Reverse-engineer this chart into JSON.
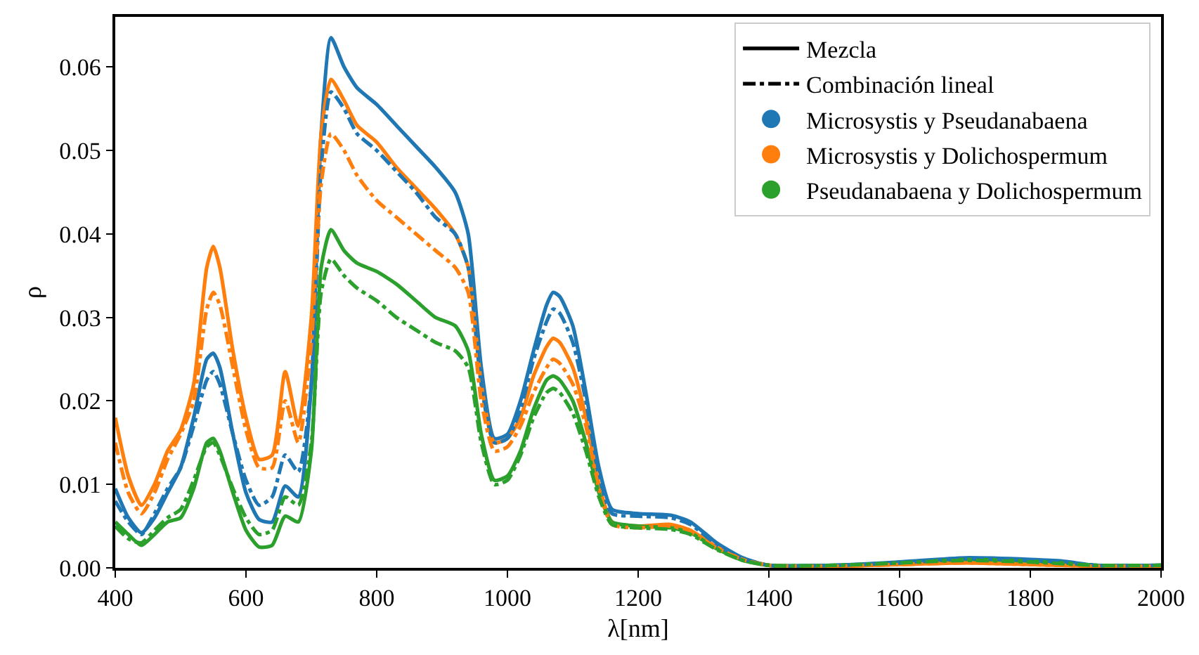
{
  "chart_data": {
    "type": "line",
    "xlabel": "λ[nm]",
    "ylabel": "ρ",
    "legend": "top right",
    "xlim": [
      400,
      2000
    ],
    "xticks": [
      400,
      600,
      800,
      1000,
      1200,
      1400,
      1600,
      1800,
      2000
    ],
    "ylim": [
      0,
      0.066
    ],
    "yticks": [
      {
        "value": 0,
        "label": "0.00"
      },
      {
        "value": 0.01,
        "label": "0.01"
      },
      {
        "value": 0.02,
        "label": "0.02"
      },
      {
        "value": 0.03,
        "label": "0.03"
      },
      {
        "value": 0.04,
        "label": "0.04"
      },
      {
        "value": 0.05,
        "label": "0.05"
      },
      {
        "value": 0.06,
        "label": "0.06"
      }
    ],
    "x": [
      400,
      420,
      440,
      460,
      480,
      500,
      520,
      540,
      550,
      560,
      580,
      600,
      620,
      640,
      660,
      680,
      700,
      715,
      730,
      750,
      770,
      800,
      830,
      860,
      890,
      920,
      940,
      960,
      980,
      1000,
      1020,
      1040,
      1060,
      1070,
      1080,
      1100,
      1120,
      1140,
      1160,
      1200,
      1250,
      1280,
      1320,
      1360,
      1400,
      1500,
      1600,
      1700,
      1800,
      1850,
      1900,
      2000
    ],
    "series": [
      {
        "name": "Mezcla",
        "color": "#000000",
        "line_style": "solid",
        "values": [
          null,
          null,
          null,
          null,
          null,
          null,
          null,
          null,
          null,
          null,
          null,
          null,
          null,
          null,
          null,
          null,
          null,
          null,
          null,
          null,
          null,
          null,
          null,
          null,
          null,
          null,
          null,
          null,
          null,
          null,
          null,
          null,
          null,
          null,
          null,
          null,
          null,
          null,
          null,
          null,
          null,
          null,
          null,
          null,
          null,
          null,
          null,
          null,
          null,
          null,
          null,
          null
        ]
      },
      {
        "name": "Combinación lineal",
        "color": "#000000",
        "line_style": "dashdot",
        "values": [
          null,
          null,
          null,
          null,
          null,
          null,
          null,
          null,
          null,
          null,
          null,
          null,
          null,
          null,
          null,
          null,
          null,
          null,
          null,
          null,
          null,
          null,
          null,
          null,
          null,
          null,
          null,
          null,
          null,
          null,
          null,
          null,
          null,
          null,
          null,
          null,
          null,
          null,
          null,
          null,
          null,
          null,
          null,
          null,
          null,
          null,
          null,
          null,
          null,
          null,
          null,
          null
        ]
      },
      {
        "name": "Microsystis y Pseudanabaena",
        "color": "#1f77b4",
        "line_style": "solid",
        "values": [
          0.0095,
          0.006,
          0.0042,
          0.006,
          0.009,
          0.012,
          0.018,
          0.025,
          0.0257,
          0.024,
          0.016,
          0.009,
          0.0058,
          0.0055,
          0.0098,
          0.0085,
          0.022,
          0.052,
          0.0635,
          0.06,
          0.0575,
          0.0555,
          0.053,
          0.0505,
          0.048,
          0.045,
          0.04,
          0.024,
          0.0155,
          0.016,
          0.02,
          0.026,
          0.0315,
          0.033,
          0.0325,
          0.029,
          0.021,
          0.012,
          0.007,
          0.0065,
          0.0063,
          0.0055,
          0.003,
          0.0012,
          0.0003,
          0.0003,
          0.0007,
          0.0012,
          0.001,
          0.0008,
          0.0003,
          0.0003
        ]
      },
      {
        "name": "Microsystis y Dolichospermum",
        "color": "#ff7f0e",
        "line_style": "solid",
        "values": [
          0.018,
          0.011,
          0.0075,
          0.01,
          0.014,
          0.0165,
          0.022,
          0.036,
          0.0385,
          0.036,
          0.026,
          0.018,
          0.013,
          0.0135,
          0.0235,
          0.017,
          0.03,
          0.052,
          0.0585,
          0.056,
          0.053,
          0.051,
          0.048,
          0.0455,
          0.043,
          0.04,
          0.036,
          0.022,
          0.015,
          0.0155,
          0.018,
          0.023,
          0.0265,
          0.0275,
          0.027,
          0.024,
          0.018,
          0.01,
          0.0055,
          0.005,
          0.0052,
          0.0045,
          0.0025,
          0.001,
          0.0003,
          0.0002,
          0.0004,
          0.0006,
          0.0004,
          0.0003,
          0.0002,
          0.0002
        ]
      },
      {
        "name": "Pseudanabaena y Dolichospermum",
        "color": "#2ca02c",
        "line_style": "solid",
        "values": [
          0.0055,
          0.004,
          0.0027,
          0.004,
          0.0055,
          0.006,
          0.0095,
          0.015,
          0.0155,
          0.014,
          0.009,
          0.0045,
          0.0025,
          0.0027,
          0.0062,
          0.0055,
          0.014,
          0.036,
          0.0405,
          0.038,
          0.0365,
          0.0355,
          0.034,
          0.032,
          0.03,
          0.029,
          0.026,
          0.016,
          0.0105,
          0.011,
          0.014,
          0.019,
          0.0225,
          0.023,
          0.0225,
          0.02,
          0.015,
          0.009,
          0.0055,
          0.005,
          0.0048,
          0.0042,
          0.0023,
          0.0009,
          0.0003,
          0.0003,
          0.0006,
          0.001,
          0.0008,
          0.0006,
          0.0003,
          0.0003
        ]
      },
      {
        "color": "#1f77b4",
        "line_style": "dashdot",
        "values": [
          0.008,
          0.0055,
          0.004,
          0.0065,
          0.0095,
          0.012,
          0.017,
          0.0225,
          0.0235,
          0.022,
          0.016,
          0.0105,
          0.0075,
          0.0085,
          0.0135,
          0.0115,
          0.022,
          0.048,
          0.057,
          0.055,
          0.052,
          0.05,
          0.0475,
          0.045,
          0.042,
          0.04,
          0.036,
          0.022,
          0.015,
          0.0155,
          0.019,
          0.025,
          0.0295,
          0.031,
          0.0305,
          0.027,
          0.02,
          0.011,
          0.0065,
          0.0062,
          0.006,
          0.0052,
          0.0028,
          0.0011,
          0.0003,
          0.0003,
          0.0006,
          0.0011,
          0.0009,
          0.0007,
          0.0003,
          0.0003
        ]
      },
      {
        "color": "#ff7f0e",
        "line_style": "dashdot",
        "values": [
          0.015,
          0.009,
          0.0065,
          0.009,
          0.013,
          0.016,
          0.02,
          0.031,
          0.033,
          0.0315,
          0.024,
          0.0165,
          0.012,
          0.012,
          0.02,
          0.015,
          0.027,
          0.046,
          0.052,
          0.05,
          0.047,
          0.044,
          0.042,
          0.04,
          0.038,
          0.036,
          0.033,
          0.02,
          0.014,
          0.0145,
          0.017,
          0.021,
          0.024,
          0.025,
          0.0245,
          0.022,
          0.017,
          0.0095,
          0.0052,
          0.0048,
          0.005,
          0.0043,
          0.0024,
          0.001,
          0.0003,
          0.0002,
          0.0004,
          0.0006,
          0.0004,
          0.0003,
          0.0002,
          0.0002
        ]
      },
      {
        "color": "#2ca02c",
        "line_style": "dashdot",
        "values": [
          0.005,
          0.0035,
          0.003,
          0.0045,
          0.006,
          0.007,
          0.0105,
          0.0145,
          0.015,
          0.0135,
          0.0095,
          0.006,
          0.004,
          0.0045,
          0.0085,
          0.0075,
          0.015,
          0.033,
          0.037,
          0.035,
          0.0335,
          0.032,
          0.03,
          0.0285,
          0.027,
          0.026,
          0.024,
          0.015,
          0.01,
          0.0105,
          0.0135,
          0.018,
          0.021,
          0.0215,
          0.021,
          0.0185,
          0.014,
          0.0085,
          0.0052,
          0.0048,
          0.0046,
          0.004,
          0.0022,
          0.0009,
          0.0003,
          0.0003,
          0.0006,
          0.0009,
          0.0007,
          0.0005,
          0.0003,
          0.0003
        ]
      }
    ]
  }
}
